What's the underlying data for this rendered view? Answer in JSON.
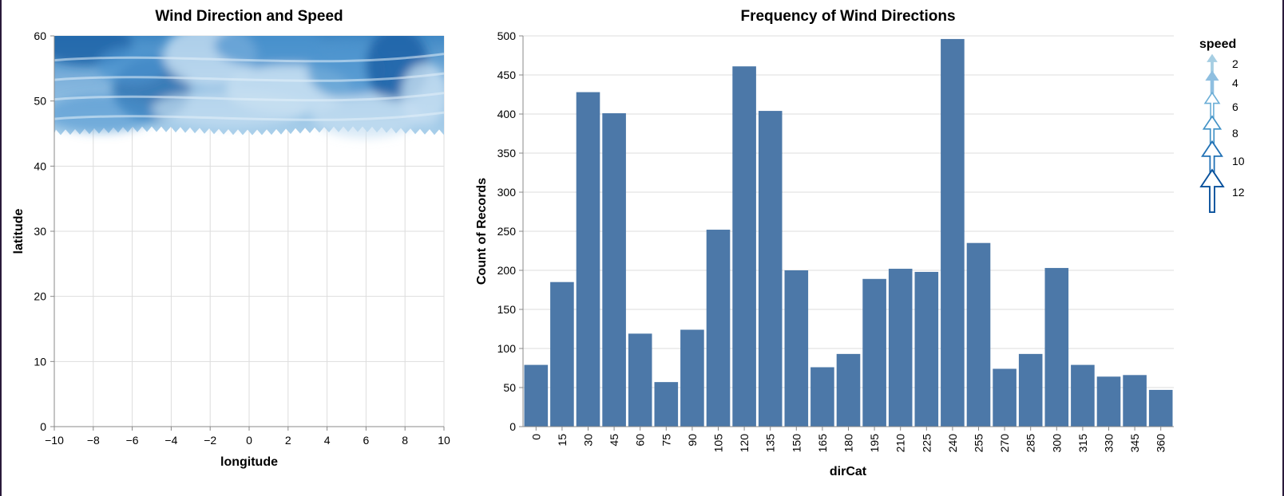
{
  "chart_data": [
    {
      "type": "vector-field",
      "title": "Wind Direction and Speed",
      "xlabel": "longitude",
      "ylabel": "latitude",
      "xlim": [
        -10,
        10
      ],
      "ylim": [
        0,
        60
      ],
      "xticks": [
        -10,
        -8,
        -6,
        -4,
        -2,
        0,
        2,
        4,
        6,
        8,
        10
      ],
      "yticks": [
        0,
        10,
        20,
        30,
        40,
        50,
        60
      ],
      "grid": true,
      "data_extent": {
        "longitude": [
          -10,
          10
        ],
        "latitude": [
          45,
          60
        ]
      },
      "color_encoding": "speed",
      "color_range": [
        "#c6dbef",
        "#08519c"
      ]
    },
    {
      "type": "bar",
      "title": "Frequency of Wind Directions",
      "xlabel": "dirCat",
      "ylabel": "Count of Records",
      "categories": [
        "0",
        "15",
        "30",
        "45",
        "60",
        "75",
        "90",
        "105",
        "120",
        "135",
        "150",
        "165",
        "180",
        "195",
        "210",
        "225",
        "240",
        "255",
        "270",
        "285",
        "300",
        "315",
        "330",
        "345",
        "360"
      ],
      "values": [
        79,
        185,
        428,
        401,
        119,
        57,
        124,
        252,
        461,
        404,
        200,
        76,
        93,
        189,
        202,
        198,
        496,
        235,
        74,
        93,
        203,
        79,
        64,
        66,
        47
      ],
      "ylim": [
        0,
        500
      ],
      "yticks": [
        0,
        50,
        100,
        150,
        200,
        250,
        300,
        350,
        400,
        450,
        500
      ],
      "grid": true,
      "bar_color": "#4c78a8"
    }
  ],
  "legend": {
    "title": "speed",
    "placement": "right",
    "items": [
      {
        "label": "2",
        "value": 2,
        "color": "#a6cee3"
      },
      {
        "label": "4",
        "value": 4,
        "color": "#8fbfe0"
      },
      {
        "label": "6",
        "value": 6,
        "color": "#6baed6"
      },
      {
        "label": "8",
        "value": 8,
        "color": "#4292c6"
      },
      {
        "label": "10",
        "value": 10,
        "color": "#2171b5"
      },
      {
        "label": "12",
        "value": 12,
        "color": "#08519c"
      }
    ]
  }
}
